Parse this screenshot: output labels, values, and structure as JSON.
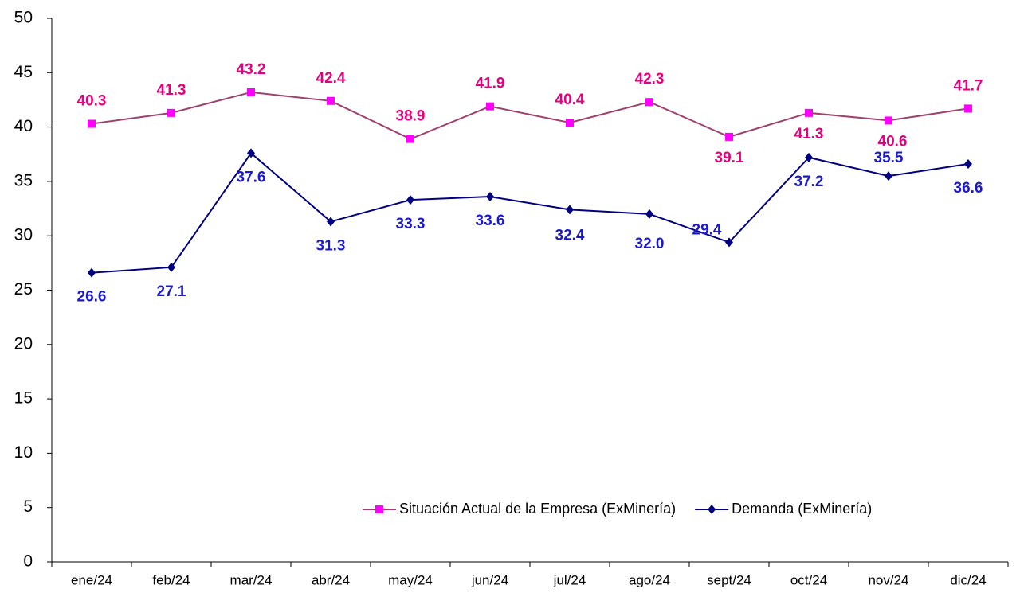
{
  "chart_data": {
    "type": "line",
    "categories": [
      "ene/24",
      "feb/24",
      "mar/24",
      "abr/24",
      "may/24",
      "jun/24",
      "jul/24",
      "ago/24",
      "sept/24",
      "oct/24",
      "nov/24",
      "dic/24"
    ],
    "series": [
      {
        "name": "Situación Actual de la Empresa (ExMinería)",
        "color": "#a0406e",
        "marker_color": "#ff00ff",
        "label_color": "#e6007e",
        "marker": "square",
        "values": [
          40.3,
          41.3,
          43.2,
          42.4,
          38.9,
          41.9,
          40.4,
          42.3,
          39.1,
          41.3,
          40.6,
          41.7
        ]
      },
      {
        "name": "Demanda (ExMinería)",
        "color": "#000080",
        "marker_color": "#000080",
        "label_color": "#1a1acc",
        "marker": "diamond",
        "values": [
          26.6,
          27.1,
          37.6,
          31.3,
          33.3,
          33.6,
          32.4,
          32.0,
          29.4,
          37.2,
          35.5,
          36.6
        ],
        "value_labels": [
          "26.6",
          "27.1",
          "37.6",
          "31.3",
          "33.3",
          "33.6",
          "32.4",
          "32.0",
          "29.4",
          "37.2",
          "35.5",
          "36.6"
        ]
      }
    ],
    "ylim": [
      0,
      50
    ],
    "yticks": [
      0,
      5,
      10,
      15,
      20,
      25,
      30,
      35,
      40,
      45,
      50
    ],
    "grid": false,
    "legend": "bottom-right"
  }
}
